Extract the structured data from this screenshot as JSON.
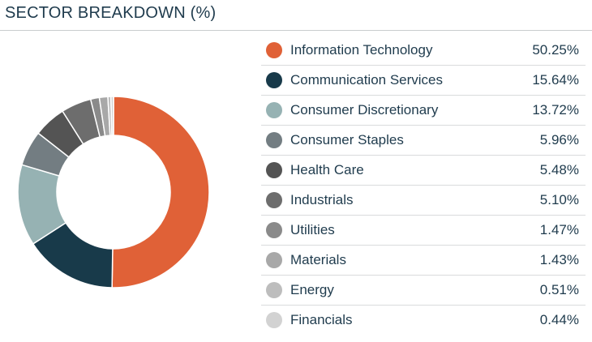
{
  "header": {
    "title": "SECTOR BREAKDOWN (%)"
  },
  "chart_data": {
    "type": "pie",
    "style": "donut",
    "title": "SECTOR BREAKDOWN (%)",
    "legend_position": "right",
    "categories": [
      "Information Technology",
      "Communication Services",
      "Consumer Discretionary",
      "Consumer Staples",
      "Health Care",
      "Industrials",
      "Utilities",
      "Materials",
      "Energy",
      "Financials"
    ],
    "values": [
      50.25,
      15.64,
      13.72,
      5.96,
      5.48,
      5.1,
      1.47,
      1.43,
      0.51,
      0.44
    ],
    "value_labels": [
      "50.25%",
      "15.64%",
      "13.72%",
      "5.96%",
      "5.48%",
      "5.10%",
      "1.47%",
      "1.43%",
      "0.51%",
      "0.44%"
    ],
    "colors": [
      "#e06137",
      "#183a4a",
      "#96b2b3",
      "#737d82",
      "#545454",
      "#6d6d6d",
      "#8a8a8a",
      "#a8a8a8",
      "#bdbdbd",
      "#d2d2d2"
    ]
  }
}
